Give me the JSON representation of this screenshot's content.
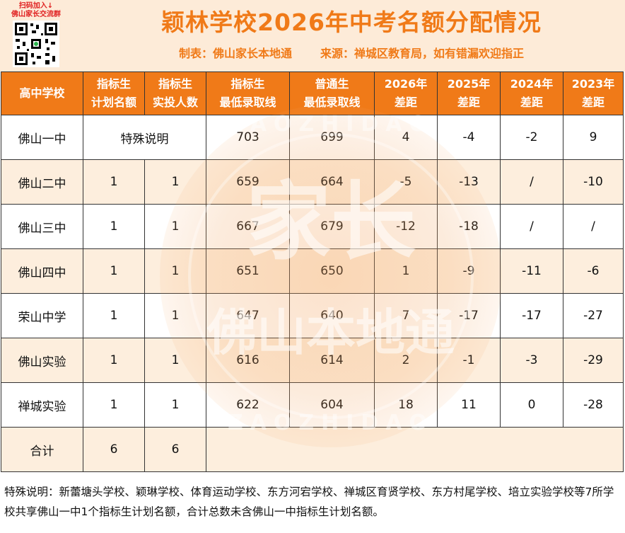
{
  "header": {
    "qr_line1": "扫码加入↓",
    "qr_line2": "佛山家长交流群",
    "title": "颖林学校2026年中考名额分配情况",
    "maker": "制表：佛山家长本地通",
    "source": "来源：禅城区教育局，如有错漏欢迎指正"
  },
  "table": {
    "headers": [
      "高中学校",
      "指标生\n计划名额",
      "指标生\n实投人数",
      "指标生\n最低录取线",
      "普通生\n最低录取线",
      "2026年\n差距",
      "2025年\n差距",
      "2024年\n差距",
      "2023年\n差距"
    ],
    "rows": [
      {
        "school": "佛山一中",
        "special": "特殊说明",
        "quota": "",
        "actual": "",
        "zb_min": "703",
        "pt_min": "699",
        "d2026": "4",
        "d2025": "-4",
        "d2024": "-2",
        "d2023": "9"
      },
      {
        "school": "佛山二中",
        "quota": "1",
        "actual": "1",
        "zb_min": "659",
        "pt_min": "664",
        "d2026": "-5",
        "d2025": "-13",
        "d2024": "/",
        "d2023": "-10"
      },
      {
        "school": "佛山三中",
        "quota": "1",
        "actual": "1",
        "zb_min": "667",
        "pt_min": "679",
        "d2026": "-12",
        "d2025": "-18",
        "d2024": "/",
        "d2023": "/"
      },
      {
        "school": "佛山四中",
        "quota": "1",
        "actual": "1",
        "zb_min": "651",
        "pt_min": "650",
        "d2026": "1",
        "d2025": "-9",
        "d2024": "-11",
        "d2023": "-6"
      },
      {
        "school": "荣山中学",
        "quota": "1",
        "actual": "1",
        "zb_min": "647",
        "pt_min": "640",
        "d2026": "7",
        "d2025": "-17",
        "d2024": "-17",
        "d2023": "-27"
      },
      {
        "school": "佛山实验",
        "quota": "1",
        "actual": "1",
        "zb_min": "616",
        "pt_min": "614",
        "d2026": "2",
        "d2025": "-1",
        "d2024": "-3",
        "d2023": "-29"
      },
      {
        "school": "禅城实验",
        "quota": "1",
        "actual": "1",
        "zb_min": "622",
        "pt_min": "604",
        "d2026": "18",
        "d2025": "11",
        "d2024": "0",
        "d2023": "-28"
      }
    ],
    "total": {
      "label": "合计",
      "quota": "6",
      "actual": "6"
    }
  },
  "note": "特殊说明：新蕾塘头学校、颖琳学校、体育运动学校、东方河宕学校、禅城区育贤学校、东方村尾学校、培立实验学校等7所学校共享佛山一中1个指标生计划名额，合计总数未含佛山一中指标生计划名额。",
  "watermark": {
    "main": "家长",
    "sub": "佛山本地通",
    "arc_top": "ZAOZHIDAO",
    "arc_bottom": "ZAOZHIDAO"
  },
  "colors": {
    "accent": "#f07a18",
    "header_bg": "#fdebd8",
    "row_alt": "#fdeedd"
  },
  "icons": [
    "qr-code-icon"
  ]
}
